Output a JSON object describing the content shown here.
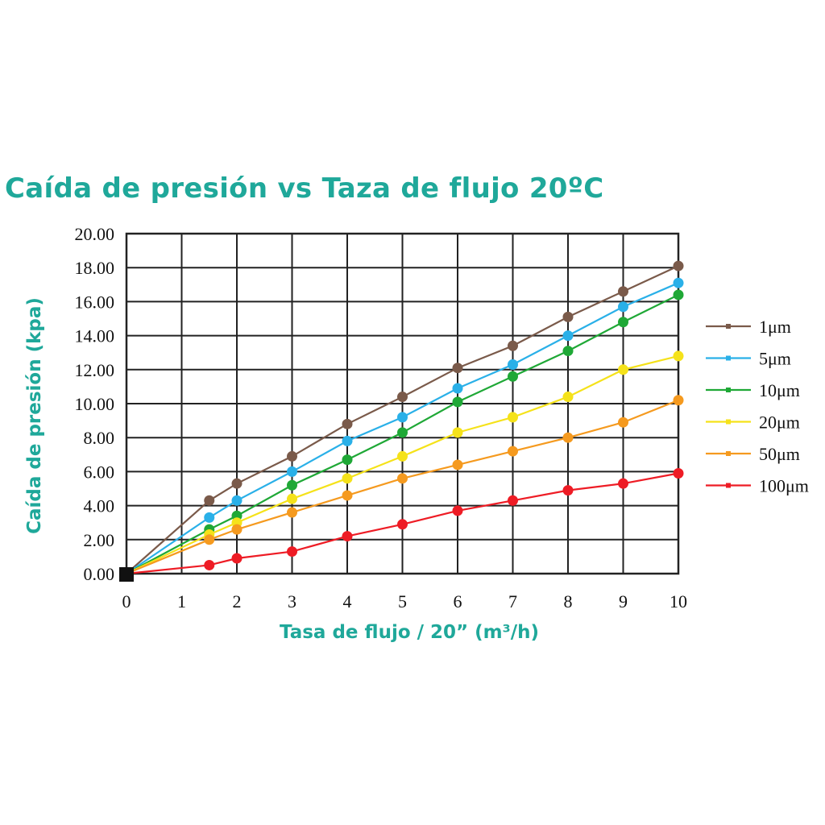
{
  "chart_data": {
    "type": "line",
    "title": "Caída de presión vs Taza de flujo 20ºC",
    "xlabel": "Tasa de flujo / 20” (m³/h)",
    "ylabel": "Caída de presión (kpa)",
    "xlim": [
      0,
      10
    ],
    "ylim": [
      0,
      20
    ],
    "x_ticks": [
      "0",
      "1",
      "2",
      "3",
      "4",
      "5",
      "6",
      "7",
      "8",
      "9",
      "10"
    ],
    "y_ticks": [
      "0.00",
      "2.00",
      "4.00",
      "6.00",
      "8.00",
      "10.00",
      "12.00",
      "14.00",
      "16.00",
      "18.00",
      "20.00"
    ],
    "grid": true,
    "legend_position": "right",
    "x": [
      0,
      1.5,
      2,
      3,
      4,
      5,
      6,
      7,
      8,
      9,
      10
    ],
    "series": [
      {
        "name": "1μm",
        "color": "#7a5a4a",
        "values": [
          0,
          4.3,
          5.3,
          6.9,
          8.8,
          10.4,
          12.1,
          13.4,
          15.1,
          16.6,
          18.1
        ]
      },
      {
        "name": "5μm",
        "color": "#2ab0e8",
        "values": [
          0,
          3.3,
          4.3,
          6.0,
          7.8,
          9.2,
          10.9,
          12.3,
          14.0,
          15.7,
          17.1
        ]
      },
      {
        "name": "10μm",
        "color": "#1fa836",
        "values": [
          0,
          2.6,
          3.4,
          5.2,
          6.7,
          8.3,
          10.1,
          11.6,
          13.1,
          14.8,
          16.4
        ]
      },
      {
        "name": "20μm",
        "color": "#f5e21a",
        "values": [
          0,
          2.3,
          3.0,
          4.4,
          5.6,
          6.9,
          8.3,
          9.2,
          10.4,
          12.0,
          12.8
        ]
      },
      {
        "name": "50μm",
        "color": "#f59a1f",
        "values": [
          0,
          2.0,
          2.6,
          3.6,
          4.6,
          5.6,
          6.4,
          7.2,
          8.0,
          8.9,
          10.2
        ]
      },
      {
        "name": "100μm",
        "color": "#ee1c25",
        "values": [
          0,
          0.5,
          0.9,
          1.3,
          2.2,
          2.9,
          3.7,
          4.3,
          4.9,
          5.3,
          5.9
        ]
      }
    ]
  }
}
